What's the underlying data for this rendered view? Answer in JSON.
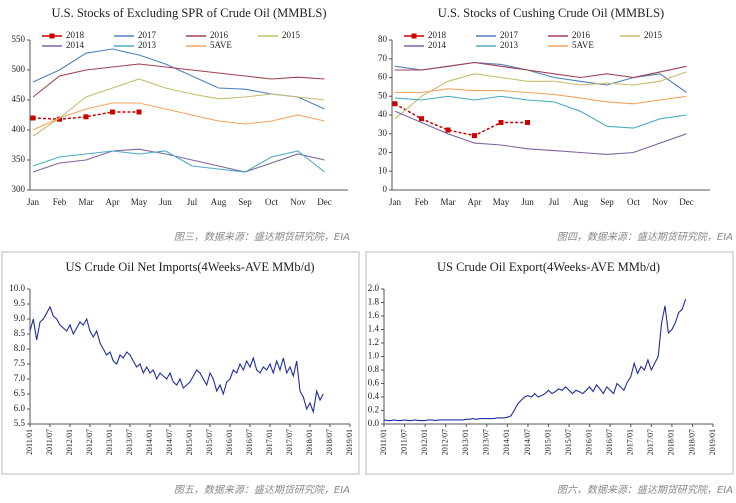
{
  "chart_data": [
    {
      "type": "line",
      "title": "U.S.  Stocks of Excluding SPR of Crude Oil (MMBLS)",
      "caption": "图三，数据来源：盛达期货研究院，EIA",
      "categories": [
        "Jan",
        "Feb",
        "Mar",
        "Apr",
        "May",
        "Jun",
        "Jul",
        "Aug",
        "Sep",
        "Oct",
        "Nov",
        "Dec"
      ],
      "ylim": [
        300,
        550
      ],
      "yticks": [
        300,
        350,
        400,
        450,
        500,
        550
      ],
      "legend": "top-left",
      "series": [
        {
          "name": "2018",
          "color": "#cc0000",
          "marker": "square",
          "values": [
            420,
            418,
            422,
            430,
            430,
            null,
            null,
            null,
            null,
            null,
            null,
            null
          ]
        },
        {
          "name": "2017",
          "color": "#4f81bd",
          "values": [
            480,
            500,
            528,
            535,
            525,
            510,
            490,
            470,
            468,
            460,
            455,
            435
          ]
        },
        {
          "name": "2016",
          "color": "#a04050",
          "values": [
            455,
            490,
            500,
            505,
            510,
            505,
            500,
            495,
            490,
            485,
            488,
            485
          ]
        },
        {
          "name": "2015",
          "color": "#c4bd70",
          "values": [
            390,
            420,
            455,
            470,
            485,
            470,
            460,
            452,
            455,
            460,
            455,
            450
          ]
        },
        {
          "name": "2014",
          "color": "#8064a2",
          "values": [
            330,
            345,
            350,
            365,
            368,
            360,
            350,
            340,
            330,
            345,
            360,
            350
          ]
        },
        {
          "name": "2013",
          "color": "#4bacc6",
          "values": [
            340,
            355,
            360,
            365,
            360,
            365,
            340,
            335,
            330,
            355,
            365,
            330
          ]
        },
        {
          "name": "5AVE",
          "color": "#f4a460",
          "values": [
            400,
            420,
            435,
            445,
            445,
            435,
            425,
            415,
            410,
            415,
            425,
            415
          ]
        }
      ]
    },
    {
      "type": "line",
      "title": "U.S.  Stocks of Cushing  Crude Oil (MMBLS)",
      "caption": "图四，数据来源：盛达期货研究院，EIA",
      "categories": [
        "Jan",
        "Feb",
        "Mar",
        "Apr",
        "May",
        "Jun",
        "Jul",
        "Aug",
        "Sep",
        "Oct",
        "Nov",
        "Dec"
      ],
      "ylim": [
        0,
        80
      ],
      "yticks": [
        0,
        10,
        20,
        30,
        40,
        50,
        60,
        70,
        80
      ],
      "legend": "top-left",
      "series": [
        {
          "name": "2018",
          "color": "#cc0000",
          "marker": "square",
          "values": [
            46,
            38,
            32,
            29,
            36,
            36,
            null,
            null,
            null,
            null,
            null,
            null
          ]
        },
        {
          "name": "2017",
          "color": "#4f81bd",
          "values": [
            66,
            64,
            66,
            68,
            67,
            64,
            60,
            58,
            56,
            60,
            62,
            52
          ]
        },
        {
          "name": "2016",
          "color": "#a04050",
          "values": [
            64,
            64,
            66,
            68,
            66,
            64,
            62,
            60,
            62,
            60,
            63,
            66
          ]
        },
        {
          "name": "2015",
          "color": "#c4bd70",
          "values": [
            38,
            50,
            58,
            62,
            60,
            58,
            58,
            56,
            57,
            56,
            58,
            63
          ]
        },
        {
          "name": "2014",
          "color": "#8064a2",
          "values": [
            42,
            36,
            30,
            25,
            24,
            22,
            21,
            20,
            19,
            20,
            25,
            30
          ]
        },
        {
          "name": "2013",
          "color": "#4bacc6",
          "values": [
            49,
            48,
            50,
            48,
            50,
            48,
            47,
            42,
            34,
            33,
            38,
            40
          ]
        },
        {
          "name": "5AVE",
          "color": "#f4a460",
          "values": [
            52,
            52,
            54,
            53,
            53,
            52,
            51,
            49,
            47,
            46,
            48,
            50
          ]
        }
      ]
    },
    {
      "type": "line",
      "title": "US Crude Oil Net Imports(4Weeks-AVE MMb/d)",
      "caption": "图五，数据来源：盛达期货研究院，EIA",
      "xlim": [
        "2011/01",
        "2019/01"
      ],
      "xticks": [
        "2011/01",
        "2011/07",
        "2012/01",
        "2012/07",
        "2013/01",
        "2013/07",
        "2014/01",
        "2014/07",
        "2015/01",
        "2015/07",
        "2016/01",
        "2016/07",
        "2017/01",
        "2017/07",
        "2018/01",
        "2018/07",
        "2019/01"
      ],
      "ylim": [
        5.5,
        10
      ],
      "yticks": [
        5.5,
        {
          "value": 6,
          "label": "6.0"
        },
        6.5,
        {
          "value": 7,
          "label": "7.0"
        },
        7.5,
        {
          "value": 8,
          "label": "8.0"
        },
        8.5,
        {
          "value": 9,
          "label": "9.0"
        },
        9.5,
        {
          "value": 10,
          "label": "10.0"
        }
      ],
      "x": [
        "2011/01",
        "2011/02",
        "2011/03",
        "2011/04",
        "2011/05",
        "2011/06",
        "2011/07",
        "2011/08",
        "2011/09",
        "2011/10",
        "2011/11",
        "2011/12",
        "2012/01",
        "2012/02",
        "2012/03",
        "2012/04",
        "2012/05",
        "2012/06",
        "2012/07",
        "2012/08",
        "2012/09",
        "2012/10",
        "2012/11",
        "2012/12",
        "2013/01",
        "2013/02",
        "2013/03",
        "2013/04",
        "2013/05",
        "2013/06",
        "2013/07",
        "2013/08",
        "2013/09",
        "2013/10",
        "2013/11",
        "2013/12",
        "2014/01",
        "2014/02",
        "2014/03",
        "2014/04",
        "2014/05",
        "2014/06",
        "2014/07",
        "2014/08",
        "2014/09",
        "2014/10",
        "2014/11",
        "2014/12",
        "2015/01",
        "2015/02",
        "2015/03",
        "2015/04",
        "2015/05",
        "2015/06",
        "2015/07",
        "2015/08",
        "2015/09",
        "2015/10",
        "2015/11",
        "2015/12",
        "2016/01",
        "2016/02",
        "2016/03",
        "2016/04",
        "2016/05",
        "2016/06",
        "2016/07",
        "2016/08",
        "2016/09",
        "2016/10",
        "2016/11",
        "2016/12",
        "2017/01",
        "2017/02",
        "2017/03",
        "2017/04",
        "2017/05",
        "2017/06",
        "2017/07",
        "2017/08",
        "2017/09",
        "2017/10",
        "2017/11",
        "2017/12",
        "2018/01",
        "2018/02",
        "2018/03",
        "2018/04",
        "2018/05"
      ],
      "series": [
        {
          "color": "#1f2fa0",
          "values": [
            8.6,
            9.0,
            8.3,
            8.9,
            9.0,
            9.2,
            9.4,
            9.1,
            9.0,
            8.8,
            8.7,
            8.6,
            8.8,
            8.5,
            8.7,
            8.9,
            8.8,
            9.0,
            8.6,
            8.4,
            8.6,
            8.2,
            8.0,
            7.8,
            7.9,
            7.6,
            7.5,
            7.8,
            7.7,
            7.9,
            7.8,
            7.6,
            7.4,
            7.5,
            7.2,
            7.4,
            7.2,
            7.3,
            7.0,
            7.2,
            7.1,
            7.0,
            7.2,
            6.9,
            6.8,
            7.0,
            6.7,
            6.8,
            6.9,
            7.1,
            7.3,
            7.2,
            7.0,
            6.8,
            7.2,
            7.0,
            6.6,
            6.8,
            6.5,
            6.9,
            7.0,
            7.3,
            7.2,
            7.5,
            7.3,
            7.6,
            7.4,
            7.7,
            7.3,
            7.2,
            7.4,
            7.3,
            7.5,
            7.2,
            7.6,
            7.3,
            7.7,
            7.2,
            7.4,
            7.1,
            7.6,
            6.6,
            6.4,
            6.0,
            6.2,
            5.9,
            6.6,
            6.3,
            6.5
          ]
        }
      ]
    },
    {
      "type": "line",
      "title": "US Crude Oil Export(4Weeks-AVE MMb/d)",
      "caption": "图六，数据来源：盛达期货研究院，EIA",
      "xlim": [
        "2011/01",
        "2019/01"
      ],
      "xticks": [
        "2011/01",
        "2011/07",
        "2012/01",
        "2012/07",
        "2013/01",
        "2013/07",
        "2014/01",
        "2014/07",
        "2015/01",
        "2015/07",
        "2016/01",
        "2016/07",
        "2017/01",
        "2017/07",
        "2018/01",
        "2018/07",
        "2019/01"
      ],
      "ylim": [
        0,
        2
      ],
      "yticks": [
        {
          "value": 0,
          "label": "0.0"
        },
        0.2,
        0.4,
        0.6,
        0.8,
        {
          "value": 1,
          "label": "1.0"
        },
        1.2,
        1.4,
        1.6,
        1.8,
        {
          "value": 2,
          "label": "2.0"
        }
      ],
      "x": [
        "2011/01",
        "2011/02",
        "2011/03",
        "2011/04",
        "2011/05",
        "2011/06",
        "2011/07",
        "2011/08",
        "2011/09",
        "2011/10",
        "2011/11",
        "2011/12",
        "2012/01",
        "2012/02",
        "2012/03",
        "2012/04",
        "2012/05",
        "2012/06",
        "2012/07",
        "2012/08",
        "2012/09",
        "2012/10",
        "2012/11",
        "2012/12",
        "2013/01",
        "2013/02",
        "2013/03",
        "2013/04",
        "2013/05",
        "2013/06",
        "2013/07",
        "2013/08",
        "2013/09",
        "2013/10",
        "2013/11",
        "2013/12",
        "2014/01",
        "2014/02",
        "2014/03",
        "2014/04",
        "2014/05",
        "2014/06",
        "2014/07",
        "2014/08",
        "2014/09",
        "2014/10",
        "2014/11",
        "2014/12",
        "2015/01",
        "2015/02",
        "2015/03",
        "2015/04",
        "2015/05",
        "2015/06",
        "2015/07",
        "2015/08",
        "2015/09",
        "2015/10",
        "2015/11",
        "2015/12",
        "2016/01",
        "2016/02",
        "2016/03",
        "2016/04",
        "2016/05",
        "2016/06",
        "2016/07",
        "2016/08",
        "2016/09",
        "2016/10",
        "2016/11",
        "2016/12",
        "2017/01",
        "2017/02",
        "2017/03",
        "2017/04",
        "2017/05",
        "2017/06",
        "2017/07",
        "2017/08",
        "2017/09",
        "2017/10",
        "2017/11",
        "2017/12",
        "2018/01",
        "2018/02",
        "2018/03",
        "2018/04",
        "2018/05"
      ],
      "series": [
        {
          "color": "#1f2fa0",
          "values": [
            0.06,
            0.05,
            0.05,
            0.06,
            0.05,
            0.05,
            0.06,
            0.05,
            0.05,
            0.06,
            0.05,
            0.05,
            0.05,
            0.06,
            0.06,
            0.05,
            0.06,
            0.06,
            0.06,
            0.06,
            0.06,
            0.06,
            0.06,
            0.06,
            0.07,
            0.07,
            0.08,
            0.07,
            0.08,
            0.08,
            0.08,
            0.08,
            0.08,
            0.09,
            0.09,
            0.09,
            0.1,
            0.12,
            0.2,
            0.3,
            0.35,
            0.4,
            0.42,
            0.4,
            0.45,
            0.4,
            0.42,
            0.45,
            0.5,
            0.45,
            0.48,
            0.52,
            0.5,
            0.55,
            0.5,
            0.45,
            0.5,
            0.48,
            0.45,
            0.5,
            0.55,
            0.48,
            0.58,
            0.52,
            0.45,
            0.55,
            0.5,
            0.45,
            0.6,
            0.55,
            0.5,
            0.62,
            0.7,
            0.9,
            0.75,
            0.85,
            0.8,
            0.95,
            0.8,
            0.9,
            1.0,
            1.5,
            1.75,
            1.35,
            1.4,
            1.5,
            1.65,
            1.7,
            1.85
          ]
        }
      ]
    }
  ]
}
